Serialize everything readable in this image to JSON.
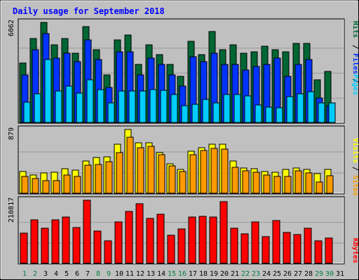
{
  "title": "Daily usage for September 2018",
  "colors": {
    "background": "#c0c0c0",
    "panel": "#c0c0c0",
    "title_text": "#0000ff",
    "hits": "#006633",
    "files": "#0033ff",
    "pages": "#00ccff",
    "visits": "#ffff00",
    "sites": "#ff9900",
    "kbytes": "#ff0000"
  },
  "legend": {
    "top": {
      "pages": "Pages",
      "files": "Files",
      "hits": "Hits",
      "sep1": "/",
      "sep2": "/"
    },
    "mid": {
      "sites": "Sites",
      "visits": "Visits",
      "sep": "/"
    },
    "bottom": {
      "kbytes": "KBytes"
    }
  },
  "chart_data": [
    {
      "type": "bar",
      "name": "hits-files-pages",
      "ymax_label": "6062",
      "ylim": [
        0,
        6062
      ],
      "categories": [
        "1",
        "2",
        "3",
        "4",
        "5",
        "6",
        "7",
        "8",
        "9",
        "10",
        "11",
        "12",
        "13",
        "14",
        "15",
        "16",
        "17",
        "18",
        "19",
        "20",
        "21",
        "22",
        "23",
        "24",
        "25",
        "26",
        "27",
        "28",
        "29",
        "30",
        "31"
      ],
      "series": [
        {
          "name": "Hits",
          "values": [
            3600,
            5100,
            6062,
            4700,
            5100,
            4200,
            5800,
            4400,
            2900,
            5000,
            5300,
            3500,
            4700,
            4100,
            3500,
            2800,
            4900,
            4100,
            5500,
            4400,
            4700,
            4200,
            4300,
            4600,
            4400,
            4300,
            4800,
            4800,
            2600,
            3100,
            0
          ]
        },
        {
          "name": "Files",
          "values": [
            2900,
            4400,
            5400,
            3900,
            4200,
            3700,
            5000,
            3800,
            2100,
            4300,
            4300,
            2900,
            3900,
            3500,
            2900,
            2200,
            4000,
            3700,
            4200,
            3500,
            3500,
            3200,
            3400,
            3500,
            3900,
            2800,
            3500,
            3800,
            1500,
            1000,
            0
          ]
        },
        {
          "name": "Pages",
          "values": [
            1250,
            1750,
            3800,
            1900,
            2200,
            1800,
            2600,
            2000,
            1200,
            1900,
            1900,
            1900,
            2000,
            1950,
            1700,
            1000,
            1100,
            1400,
            1200,
            1700,
            1700,
            1600,
            1050,
            950,
            900,
            1550,
            1750,
            1850,
            1200,
            1200,
            0
          ]
        }
      ]
    },
    {
      "type": "bar",
      "name": "visits-sites",
      "ymax_label": "879",
      "ylim": [
        0,
        879
      ],
      "categories": [
        "1",
        "2",
        "3",
        "4",
        "5",
        "6",
        "7",
        "8",
        "9",
        "10",
        "11",
        "12",
        "13",
        "14",
        "15",
        "16",
        "17",
        "18",
        "19",
        "20",
        "21",
        "22",
        "23",
        "24",
        "25",
        "26",
        "27",
        "28",
        "29",
        "30",
        "31"
      ],
      "series": [
        {
          "name": "Visits",
          "values": [
            300,
            250,
            280,
            290,
            340,
            320,
            440,
            490,
            500,
            680,
            879,
            700,
            700,
            560,
            410,
            330,
            580,
            630,
            680,
            680,
            440,
            350,
            340,
            300,
            290,
            330,
            350,
            330,
            270,
            330,
            0
          ]
        },
        {
          "name": "Sites",
          "values": [
            230,
            200,
            170,
            170,
            250,
            230,
            390,
            400,
            430,
            560,
            770,
            630,
            650,
            530,
            380,
            300,
            530,
            590,
            620,
            610,
            360,
            310,
            290,
            250,
            230,
            230,
            310,
            280,
            150,
            240,
            0
          ]
        }
      ]
    },
    {
      "type": "bar",
      "name": "kbytes",
      "ymax_label": "210817",
      "ylim": [
        0,
        210817
      ],
      "categories": [
        "1",
        "2",
        "3",
        "4",
        "5",
        "6",
        "7",
        "8",
        "9",
        "10",
        "11",
        "12",
        "13",
        "14",
        "15",
        "16",
        "17",
        "18",
        "19",
        "20",
        "21",
        "22",
        "23",
        "24",
        "25",
        "26",
        "27",
        "28",
        "29",
        "30",
        "31"
      ],
      "series": [
        {
          "name": "KBytes",
          "values": [
            100000,
            145000,
            118000,
            145000,
            155000,
            120000,
            210817,
            108000,
            74000,
            138000,
            174000,
            198000,
            150000,
            165000,
            93000,
            114000,
            154000,
            158000,
            154000,
            205000,
            116000,
            99000,
            138000,
            88000,
            144000,
            103000,
            97000,
            118000,
            76000,
            84000,
            0
          ]
        }
      ]
    }
  ]
}
